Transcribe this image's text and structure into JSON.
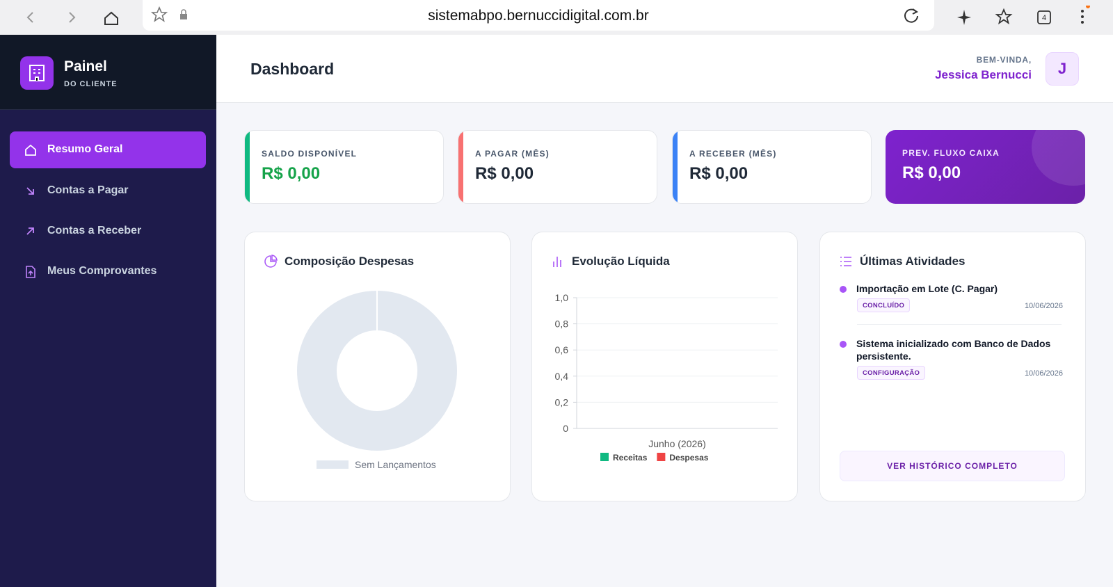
{
  "browser": {
    "url": "sistemabpo.bernuccidigital.com.br",
    "tab_count": 4
  },
  "sidebar": {
    "brand_title": "Painel",
    "brand_subtitle": "DO CLIENTE",
    "nav": [
      "Resumo Geral",
      "Contas a Pagar",
      "Contas a Receber",
      "Meus Comprovantes"
    ]
  },
  "header": {
    "title": "Dashboard",
    "greeting": "BEM-VINDA,",
    "user_name": "Jessica Bernucci",
    "avatar_initial": "J"
  },
  "cards": [
    {
      "label": "SALDO DISPONÍVEL",
      "value": "R$ 0,00"
    },
    {
      "label": "A PAGAR (MÊS)",
      "value": "R$ 0,00"
    },
    {
      "label": "A RECEBER (MÊS)",
      "value": "R$ 0,00"
    },
    {
      "label": "PREV. FLUXO CAIXA",
      "value": "R$ 0,00"
    }
  ],
  "chart_data": [
    {
      "type": "pie",
      "title": "Composição Despesas",
      "donut": true,
      "categories": [
        "Sem Lançamentos"
      ],
      "values": [
        100
      ],
      "colors": [
        "#e2e8f0"
      ]
    },
    {
      "type": "bar",
      "title": "Evolução Líquida",
      "categories": [
        "Junho (2026)"
      ],
      "series": [
        {
          "name": "Receitas",
          "color": "#10b981",
          "values": [
            0
          ]
        },
        {
          "name": "Despesas",
          "color": "#ef4444",
          "values": [
            0
          ]
        }
      ],
      "ylim": [
        0,
        1
      ],
      "yticks": [
        0,
        {
          "value": 0.2,
          "label": "0,2"
        },
        {
          "value": 0.4,
          "label": "0,4"
        },
        {
          "value": 0.6,
          "label": "0,6"
        },
        {
          "value": 0.8,
          "label": "0,8"
        },
        {
          "value": 1,
          "label": "1,0"
        }
      ],
      "grid": true
    }
  ],
  "activities": {
    "title": "Últimas Atividades",
    "items": [
      {
        "text": "Importação em Lote (C. Pagar)",
        "tag": "CONCLUÍDO",
        "date": "10/06/2026"
      },
      {
        "text": "Sistema inicializado com Banco de Dados persistente.",
        "tag": "CONFIGURAÇÃO",
        "date": "10/06/2026"
      }
    ],
    "button": "VER HISTÓRICO COMPLETO"
  }
}
